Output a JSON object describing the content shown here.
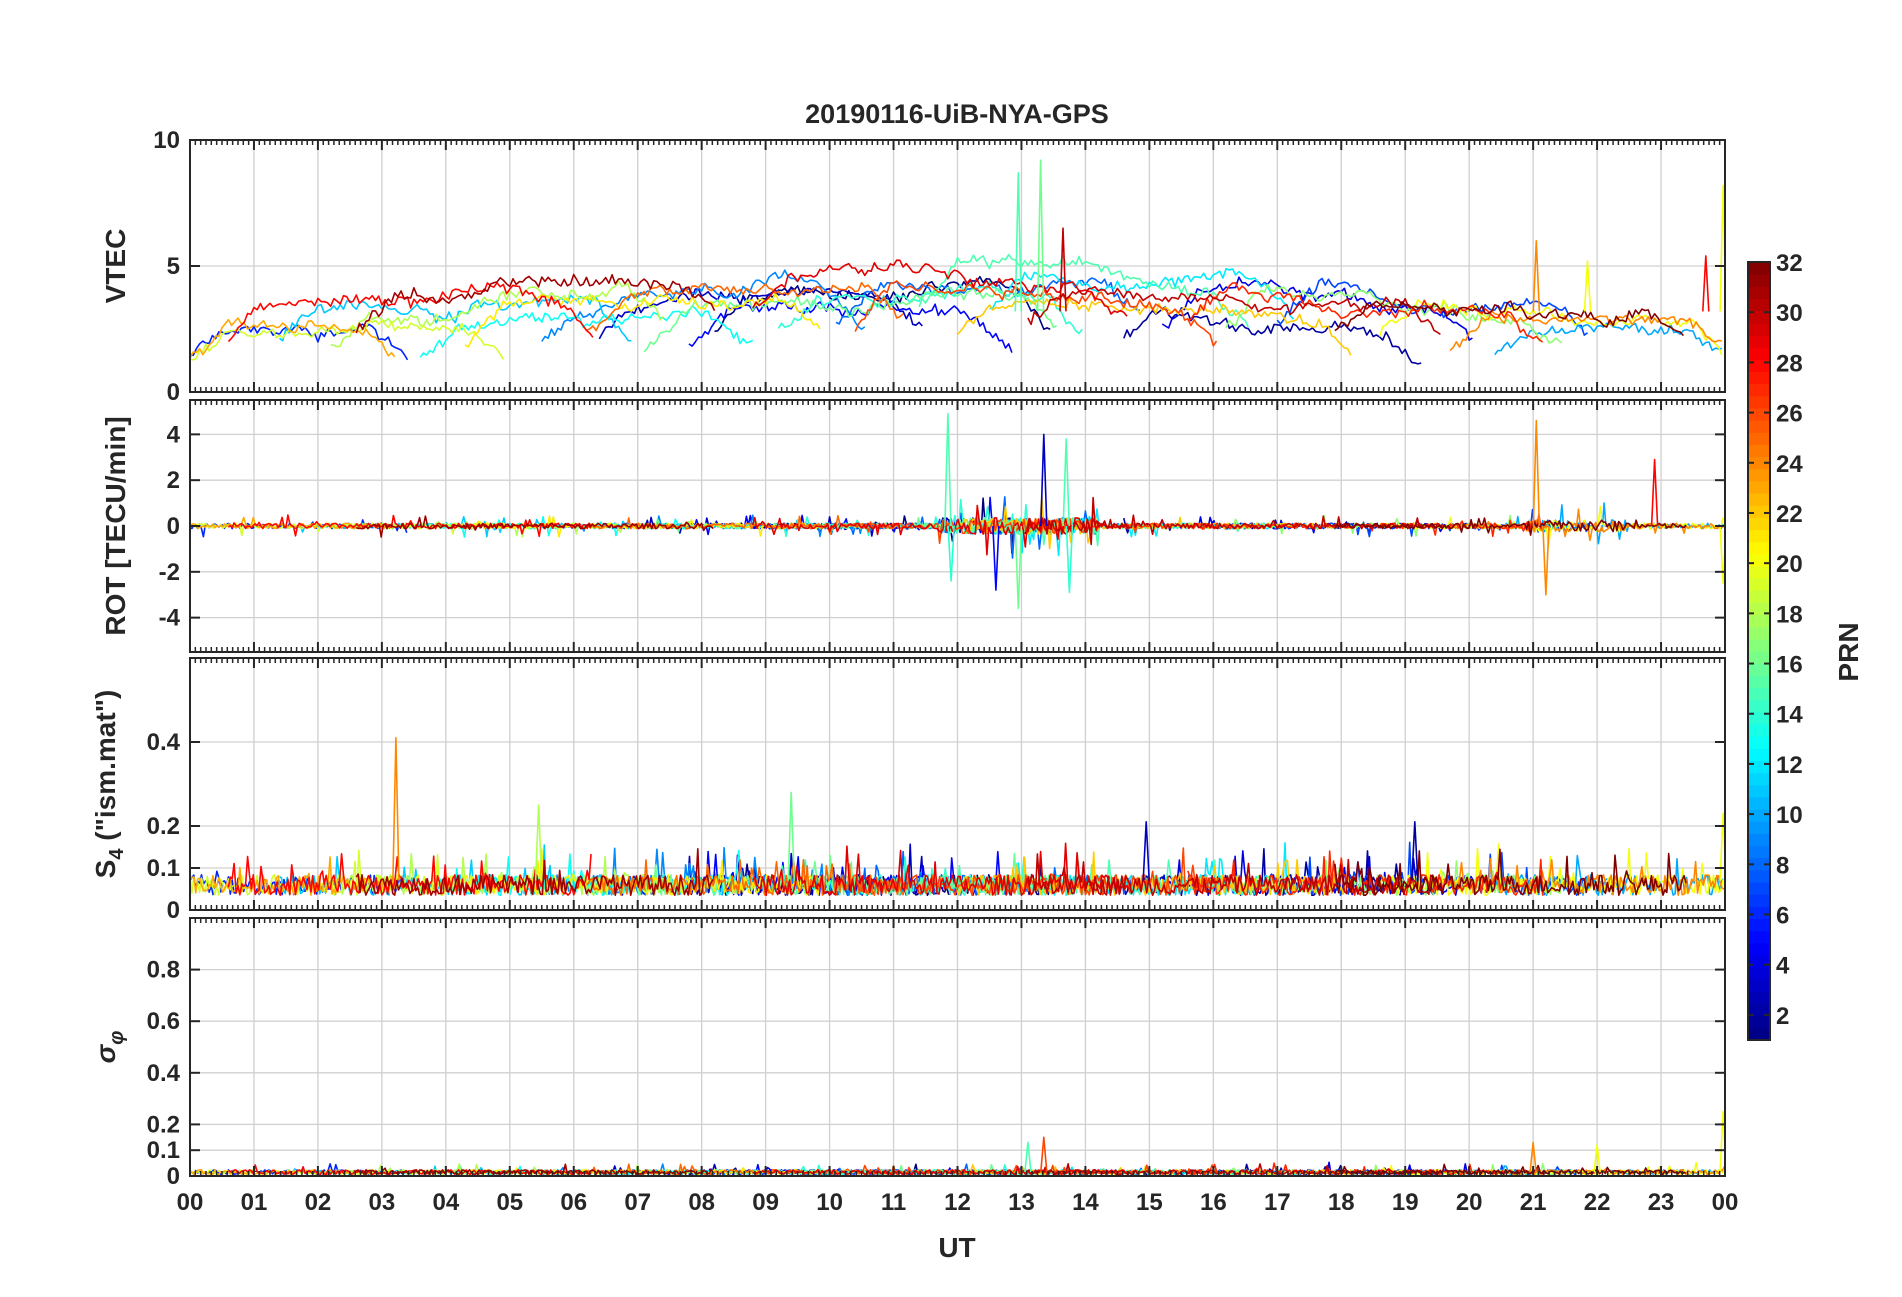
{
  "chart_data": {
    "type": "line",
    "title": "20190116-UiB-NYA-GPS",
    "xlabel": "UT",
    "x_tick_labels": [
      "00",
      "01",
      "02",
      "03",
      "04",
      "05",
      "06",
      "07",
      "08",
      "09",
      "10",
      "11",
      "12",
      "13",
      "14",
      "15",
      "16",
      "17",
      "18",
      "19",
      "20",
      "21",
      "22",
      "23",
      "00"
    ],
    "xlim_hours": [
      0,
      24
    ],
    "grid": true,
    "panels": [
      {
        "id": "vtec",
        "ylabel": "VTEC",
        "ylim": [
          0,
          10
        ],
        "yticks": [
          0,
          5,
          10
        ],
        "tick_labels": [
          "0",
          "5",
          "10"
        ],
        "approx_level": 3.2,
        "noise": 0.35,
        "spikes": [
          {
            "hour": 12.95,
            "value": 8.7,
            "prn": 15
          },
          {
            "hour": 13.3,
            "value": 9.2,
            "prn": 16
          },
          {
            "hour": 13.65,
            "value": 6.5,
            "prn": 30
          },
          {
            "hour": 21.05,
            "value": 6.0,
            "prn": 24
          },
          {
            "hour": 21.85,
            "value": 5.2,
            "prn": 20
          },
          {
            "hour": 23.7,
            "value": 5.4,
            "prn": 28
          },
          {
            "hour": 23.97,
            "value": 8.2,
            "prn": 20
          }
        ]
      },
      {
        "id": "rot",
        "ylabel": "ROT [TECU/min]",
        "ylim": [
          -5.5,
          5.5
        ],
        "yticks": [
          -4,
          -2,
          0,
          2,
          4
        ],
        "tick_labels": [
          "-4",
          "-2",
          "0",
          "2",
          "4"
        ],
        "approx_level": 0,
        "noise": 0.12,
        "spikes": [
          {
            "hour": 11.85,
            "value": 4.9,
            "prn": 15
          },
          {
            "hour": 11.9,
            "value": -2.4,
            "prn": 14
          },
          {
            "hour": 12.6,
            "value": -2.8,
            "prn": 5
          },
          {
            "hour": 12.95,
            "value": -3.6,
            "prn": 16
          },
          {
            "hour": 13.35,
            "value": 4.0,
            "prn": 3
          },
          {
            "hour": 13.7,
            "value": 3.8,
            "prn": 15
          },
          {
            "hour": 13.75,
            "value": -2.9,
            "prn": 14
          },
          {
            "hour": 21.05,
            "value": 4.6,
            "prn": 24
          },
          {
            "hour": 21.2,
            "value": -3.0,
            "prn": 24
          },
          {
            "hour": 22.9,
            "value": 2.9,
            "prn": 28
          },
          {
            "hour": 23.97,
            "value": -2.5,
            "prn": 20
          }
        ]
      },
      {
        "id": "s4",
        "ylabel": "S4 (\"ism.mat\")",
        "ylim": [
          0,
          0.6
        ],
        "yticks": [
          0,
          0.1,
          0.2,
          0.4
        ],
        "tick_labels": [
          "0",
          "0.1",
          "0.2",
          "0.4"
        ],
        "approx_level": 0.07,
        "noise": 0.025,
        "spikes": [
          {
            "hour": 3.22,
            "value": 0.41,
            "prn": 24
          },
          {
            "hour": 5.45,
            "value": 0.25,
            "prn": 18
          },
          {
            "hour": 9.4,
            "value": 0.28,
            "prn": 16
          },
          {
            "hour": 14.95,
            "value": 0.21,
            "prn": 3
          },
          {
            "hour": 19.15,
            "value": 0.21,
            "prn": 2
          },
          {
            "hour": 23.97,
            "value": 0.23,
            "prn": 20
          }
        ]
      },
      {
        "id": "sigma",
        "ylabel": "σφ",
        "ylim": [
          0,
          1
        ],
        "yticks": [
          0,
          0.1,
          0.2,
          0.4,
          0.6,
          0.8
        ],
        "tick_labels": [
          "0",
          "0.1",
          "0.2",
          "0.4",
          "0.6",
          "0.8"
        ],
        "approx_level": 0.015,
        "noise": 0.008,
        "spikes": [
          {
            "hour": 13.1,
            "value": 0.13,
            "prn": 15
          },
          {
            "hour": 13.35,
            "value": 0.15,
            "prn": 26
          },
          {
            "hour": 21.0,
            "value": 0.13,
            "prn": 24
          },
          {
            "hour": 22.0,
            "value": 0.12,
            "prn": 20
          },
          {
            "hour": 23.97,
            "value": 0.25,
            "prn": 20
          }
        ]
      }
    ],
    "colorbar": {
      "label": "PRN",
      "colormap": "jet",
      "range": [
        1,
        32
      ],
      "tick_labels": [
        "2",
        "4",
        "6",
        "8",
        "10",
        "12",
        "14",
        "16",
        "18",
        "20",
        "22",
        "24",
        "26",
        "28",
        "30",
        "32"
      ]
    },
    "satellite_passes": [
      {
        "prn": 1,
        "start": 8.2,
        "end": 13.5
      },
      {
        "prn": 2,
        "start": 14.6,
        "end": 19.3
      },
      {
        "prn": 3,
        "start": 6.4,
        "end": 11.5
      },
      {
        "prn": 4,
        "start": 15.2,
        "end": 20.1
      },
      {
        "prn": 5,
        "start": 7.8,
        "end": 12.9
      },
      {
        "prn": 6,
        "start": 0.0,
        "end": 3.4
      },
      {
        "prn": 7,
        "start": 17.0,
        "end": 21.9
      },
      {
        "prn": 8,
        "start": 10.1,
        "end": 14.9
      },
      {
        "prn": 9,
        "start": 5.5,
        "end": 10.6
      },
      {
        "prn": 10,
        "start": 20.4,
        "end": 24.0
      },
      {
        "prn": 11,
        "start": 1.4,
        "end": 6.9
      },
      {
        "prn": 12,
        "start": 12.5,
        "end": 17.3
      },
      {
        "prn": 13,
        "start": 3.6,
        "end": 8.8
      },
      {
        "prn": 14,
        "start": 9.2,
        "end": 14.0
      },
      {
        "prn": 15,
        "start": 11.4,
        "end": 16.6
      },
      {
        "prn": 16,
        "start": 7.1,
        "end": 13.6
      },
      {
        "prn": 17,
        "start": 16.2,
        "end": 21.5
      },
      {
        "prn": 18,
        "start": 2.2,
        "end": 7.4
      },
      {
        "prn": 19,
        "start": 0.0,
        "end": 4.9
      },
      {
        "prn": 20,
        "start": 18.6,
        "end": 24.0
      },
      {
        "prn": 21,
        "start": 4.3,
        "end": 9.9
      },
      {
        "prn": 22,
        "start": 12.0,
        "end": 18.2
      },
      {
        "prn": 23,
        "start": 0.0,
        "end": 3.2
      },
      {
        "prn": 24,
        "start": 19.7,
        "end": 24.0
      },
      {
        "prn": 25,
        "start": 6.2,
        "end": 11.2
      },
      {
        "prn": 26,
        "start": 10.4,
        "end": 16.1
      },
      {
        "prn": 27,
        "start": 15.6,
        "end": 21.2
      },
      {
        "prn": 28,
        "start": 0.6,
        "end": 6.3
      },
      {
        "prn": 29,
        "start": 8.8,
        "end": 14.7
      },
      {
        "prn": 30,
        "start": 13.1,
        "end": 19.6
      },
      {
        "prn": 31,
        "start": 2.6,
        "end": 8.2
      },
      {
        "prn": 32,
        "start": 17.9,
        "end": 23.4
      }
    ]
  }
}
